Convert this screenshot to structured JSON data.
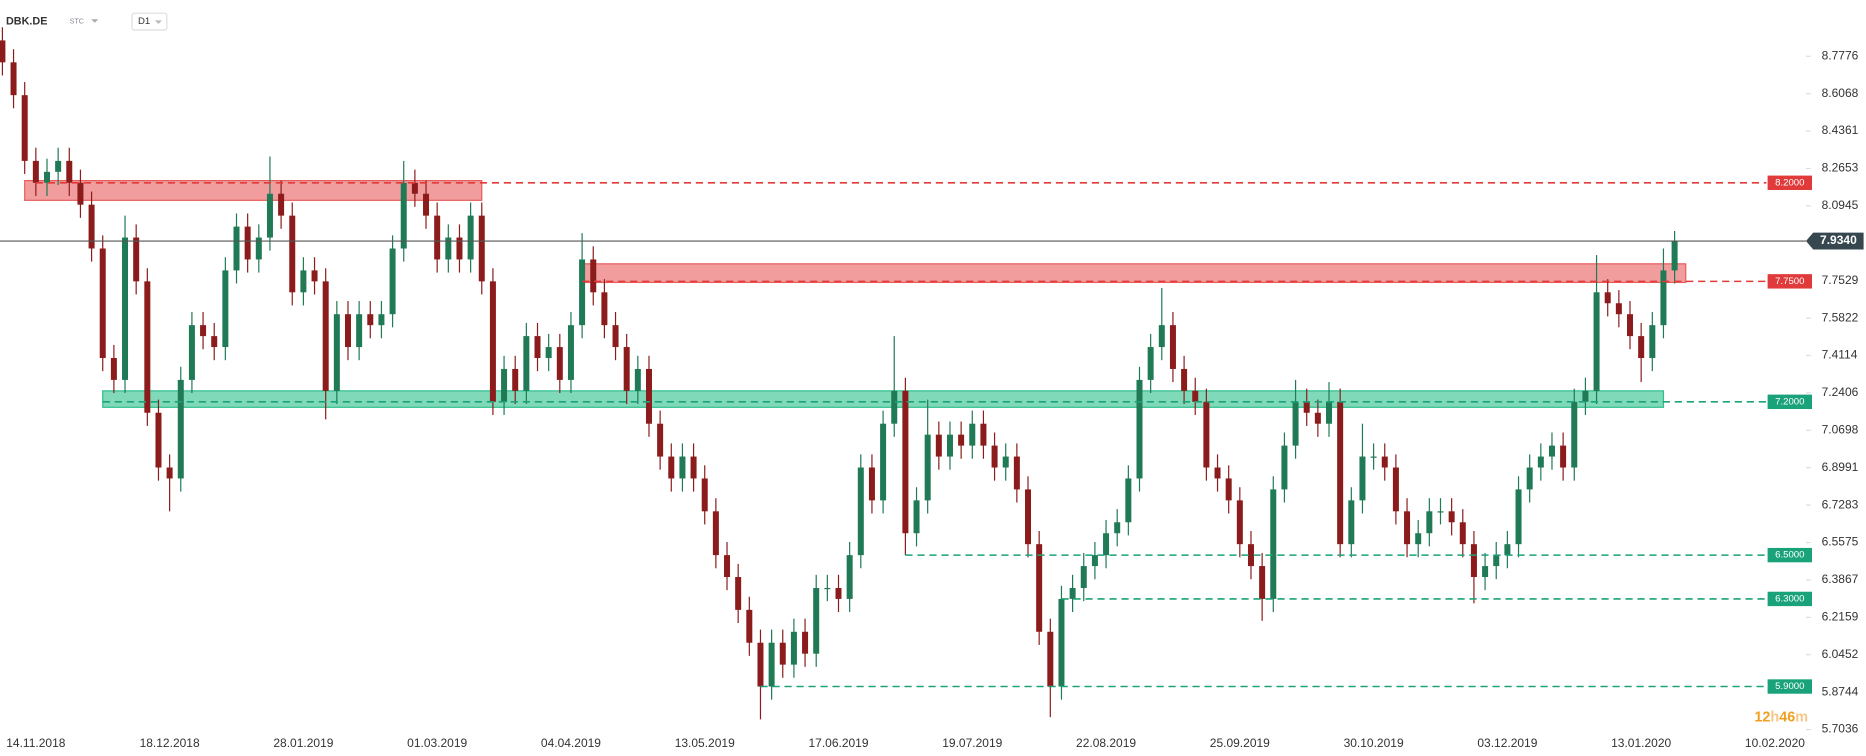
{
  "header": {
    "symbol": "DBK.DE",
    "tag": "STC",
    "interval": "D1"
  },
  "countdown": [
    "12",
    "h",
    "46",
    "m"
  ],
  "chart_data": {
    "type": "candlestick",
    "categories": [
      null,
      null,
      null,
      "14.11.2018",
      null,
      null,
      null,
      null,
      null,
      null,
      null,
      null,
      null,
      null,
      null,
      "18.12.2018",
      null,
      null,
      null,
      null,
      null,
      null,
      null,
      null,
      null,
      null,
      null,
      "28.01.2019",
      null,
      null,
      null,
      null,
      null,
      null,
      null,
      null,
      null,
      null,
      null,
      "01.03.2019",
      null,
      null,
      null,
      null,
      null,
      null,
      null,
      null,
      null,
      null,
      null,
      "04.04.2019",
      null,
      null,
      null,
      null,
      null,
      null,
      null,
      null,
      null,
      null,
      null,
      "13.05.2019",
      null,
      null,
      null,
      null,
      null,
      null,
      null,
      null,
      null,
      null,
      null,
      "17.06.2019",
      null,
      null,
      null,
      null,
      null,
      null,
      null,
      null,
      null,
      null,
      null,
      "19.07.2019",
      null,
      null,
      null,
      null,
      null,
      null,
      null,
      null,
      null,
      null,
      null,
      "22.08.2019",
      null,
      null,
      null,
      null,
      null,
      null,
      null,
      null,
      null,
      null,
      null,
      "25.09.2019",
      null,
      null,
      null,
      null,
      null,
      null,
      null,
      null,
      null,
      null,
      null,
      "30.10.2019",
      null,
      null,
      null,
      null,
      null,
      null,
      null,
      null,
      null,
      null,
      null,
      "03.12.2019",
      null,
      null,
      null,
      null,
      null,
      null,
      null,
      null,
      null,
      null,
      null,
      "13.01.2020",
      null,
      null,
      null,
      null,
      null,
      null,
      null,
      null,
      null,
      null,
      null,
      "10.02.2020"
    ],
    "open": [
      8.85,
      8.75,
      8.6,
      8.3,
      8.2,
      8.25,
      8.3,
      8.2,
      8.1,
      7.9,
      7.4,
      7.3,
      7.95,
      7.75,
      7.15,
      6.9,
      6.85,
      7.3,
      7.55,
      7.5,
      7.45,
      7.8,
      8.0,
      7.85,
      7.95,
      8.15,
      8.05,
      7.7,
      7.8,
      7.75,
      7.25,
      7.6,
      7.45,
      7.6,
      7.55,
      7.6,
      7.9,
      8.2,
      8.15,
      8.05,
      7.85,
      7.95,
      7.85,
      8.05,
      7.75,
      7.2,
      7.35,
      7.25,
      7.5,
      7.4,
      7.45,
      7.3,
      7.55,
      7.85,
      7.7,
      7.55,
      7.45,
      7.25,
      7.35,
      7.1,
      6.95,
      6.85,
      6.95,
      6.85,
      6.7,
      6.5,
      6.4,
      6.25,
      6.1,
      5.9,
      6.1,
      6.0,
      6.15,
      6.05,
      6.35,
      6.35,
      6.3,
      6.5,
      6.9,
      6.75,
      7.1,
      7.25,
      6.6,
      6.75,
      7.05,
      6.95,
      7.05,
      7.0,
      7.1,
      7.0,
      6.9,
      6.95,
      6.8,
      6.55,
      6.15,
      5.9,
      6.3,
      6.35,
      6.45,
      6.5,
      6.6,
      6.65,
      6.85,
      7.3,
      7.45,
      7.55,
      7.35,
      7.25,
      7.2,
      6.9,
      6.85,
      6.75,
      6.55,
      6.45,
      6.3,
      6.8,
      7.0,
      7.2,
      7.15,
      7.1,
      7.2,
      6.55,
      6.75,
      6.95,
      6.95,
      6.9,
      6.7,
      6.55,
      6.6,
      6.7,
      6.7,
      6.65,
      6.55,
      6.4,
      6.45,
      6.5,
      6.55,
      6.8,
      6.9,
      6.95,
      7.0,
      6.9,
      7.2,
      7.25,
      7.7,
      7.65,
      7.6,
      7.5,
      7.4,
      7.55,
      7.8,
      null,
      null,
      null,
      null,
      null,
      null,
      null,
      null,
      null
    ],
    "high": [
      8.91,
      8.81,
      8.66,
      8.36,
      8.31,
      8.36,
      8.36,
      8.26,
      8.16,
      7.96,
      7.46,
      8.05,
      8.01,
      7.81,
      7.21,
      6.96,
      7.36,
      7.61,
      7.61,
      7.56,
      7.86,
      8.06,
      8.06,
      8.01,
      8.32,
      8.21,
      8.11,
      7.86,
      7.86,
      7.81,
      7.66,
      7.66,
      7.66,
      7.66,
      7.66,
      7.96,
      8.3,
      8.26,
      8.21,
      8.11,
      8.01,
      8.01,
      8.11,
      8.11,
      7.81,
      7.41,
      7.41,
      7.56,
      7.56,
      7.51,
      7.51,
      7.61,
      7.97,
      7.91,
      7.76,
      7.61,
      7.51,
      7.41,
      7.41,
      7.16,
      7.01,
      7.01,
      7.01,
      6.91,
      6.76,
      6.56,
      6.46,
      6.31,
      6.16,
      6.16,
      6.16,
      6.21,
      6.21,
      6.41,
      6.41,
      6.41,
      6.56,
      6.96,
      6.96,
      7.16,
      7.5,
      7.31,
      6.81,
      7.21,
      7.11,
      7.11,
      7.11,
      7.16,
      7.16,
      7.06,
      7.01,
      7.01,
      6.86,
      6.61,
      6.21,
      6.36,
      6.41,
      6.51,
      6.56,
      6.66,
      6.71,
      6.91,
      7.36,
      7.51,
      7.72,
      7.61,
      7.41,
      7.31,
      7.26,
      6.96,
      6.91,
      6.81,
      6.61,
      6.51,
      6.86,
      7.06,
      7.3,
      7.26,
      7.21,
      7.29,
      7.26,
      6.81,
      7.1,
      7.01,
      7.01,
      6.96,
      6.76,
      6.66,
      6.76,
      6.76,
      6.76,
      6.71,
      6.61,
      6.51,
      6.56,
      6.61,
      6.86,
      6.96,
      7.01,
      7.06,
      7.06,
      7.26,
      7.31,
      7.87,
      7.76,
      7.71,
      7.66,
      7.56,
      7.61,
      7.9,
      7.98,
      null,
      null,
      null,
      null,
      null,
      null,
      null,
      null,
      null
    ],
    "low": [
      8.69,
      8.54,
      8.24,
      8.14,
      8.14,
      8.19,
      8.14,
      8.04,
      7.84,
      7.34,
      7.24,
      7.24,
      7.69,
      7.09,
      6.84,
      6.7,
      6.79,
      7.24,
      7.44,
      7.39,
      7.39,
      7.74,
      7.79,
      7.79,
      7.89,
      7.99,
      7.64,
      7.64,
      7.69,
      7.12,
      7.19,
      7.39,
      7.39,
      7.49,
      7.49,
      7.54,
      7.84,
      8.09,
      7.99,
      7.79,
      7.79,
      7.79,
      7.79,
      7.69,
      7.14,
      7.14,
      7.19,
      7.19,
      7.34,
      7.34,
      7.24,
      7.24,
      7.49,
      7.64,
      7.49,
      7.39,
      7.19,
      7.19,
      7.04,
      6.89,
      6.79,
      6.79,
      6.79,
      6.64,
      6.44,
      6.34,
      6.19,
      6.04,
      5.75,
      5.84,
      5.94,
      5.94,
      5.99,
      5.99,
      6.29,
      6.24,
      6.24,
      6.44,
      6.69,
      6.69,
      7.04,
      6.5,
      6.54,
      6.69,
      6.89,
      6.89,
      6.94,
      6.94,
      6.94,
      6.84,
      6.84,
      6.74,
      6.49,
      6.09,
      5.76,
      5.84,
      6.24,
      6.29,
      6.39,
      6.44,
      6.54,
      6.59,
      6.79,
      7.24,
      7.39,
      7.29,
      7.19,
      7.14,
      6.84,
      6.79,
      6.69,
      6.49,
      6.39,
      6.2,
      6.24,
      6.74,
      6.94,
      7.09,
      7.04,
      7.04,
      6.49,
      6.49,
      6.69,
      6.89,
      6.84,
      6.64,
      6.49,
      6.49,
      6.54,
      6.64,
      6.59,
      6.49,
      6.28,
      6.34,
      6.39,
      6.44,
      6.49,
      6.74,
      6.84,
      6.89,
      6.84,
      6.84,
      7.14,
      7.19,
      7.59,
      7.54,
      7.44,
      7.29,
      7.34,
      7.49,
      7.74,
      null,
      null,
      null,
      null,
      null,
      null,
      null,
      null,
      null
    ],
    "close": [
      8.75,
      8.6,
      8.3,
      8.2,
      8.25,
      8.3,
      8.2,
      8.1,
      7.9,
      7.4,
      7.3,
      7.95,
      7.75,
      7.15,
      6.9,
      6.85,
      7.3,
      7.55,
      7.5,
      7.45,
      7.8,
      8.0,
      7.85,
      7.95,
      8.15,
      8.05,
      7.7,
      7.8,
      7.75,
      7.25,
      7.6,
      7.45,
      7.6,
      7.55,
      7.6,
      7.9,
      8.2,
      8.15,
      8.05,
      7.85,
      7.95,
      7.85,
      8.05,
      7.75,
      7.2,
      7.35,
      7.25,
      7.5,
      7.4,
      7.45,
      7.3,
      7.55,
      7.85,
      7.7,
      7.55,
      7.45,
      7.25,
      7.35,
      7.1,
      6.95,
      6.85,
      6.95,
      6.85,
      6.7,
      6.5,
      6.4,
      6.25,
      6.1,
      5.9,
      6.1,
      6.0,
      6.15,
      6.05,
      6.35,
      6.35,
      6.3,
      6.5,
      6.9,
      6.75,
      7.1,
      7.25,
      6.6,
      6.75,
      7.05,
      6.95,
      7.05,
      7.0,
      7.1,
      7.0,
      6.9,
      6.95,
      6.8,
      6.55,
      6.15,
      5.9,
      6.3,
      6.35,
      6.45,
      6.5,
      6.6,
      6.65,
      6.85,
      7.3,
      7.45,
      7.55,
      7.35,
      7.25,
      7.2,
      6.9,
      6.85,
      6.75,
      6.55,
      6.45,
      6.3,
      6.8,
      7.0,
      7.2,
      7.15,
      7.1,
      7.2,
      6.55,
      6.75,
      6.95,
      6.95,
      6.9,
      6.7,
      6.55,
      6.6,
      6.7,
      6.7,
      6.65,
      6.55,
      6.4,
      6.45,
      6.5,
      6.55,
      6.8,
      6.9,
      6.95,
      7.0,
      6.9,
      7.2,
      7.25,
      7.7,
      7.65,
      7.6,
      7.5,
      7.4,
      7.55,
      7.8,
      7.934,
      null,
      null,
      null,
      null,
      null,
      null,
      null,
      null,
      null
    ],
    "up_color": "#1f7a55",
    "down_color": "#8c1c1c",
    "ylim": [
      5.665,
      8.925
    ],
    "yticks": [
      5.7036,
      5.8744,
      6.0452,
      6.2159,
      6.3867,
      6.5575,
      6.7283,
      6.8991,
      7.0698,
      7.2406,
      7.4114,
      7.5822,
      7.7529,
      8.0945,
      8.2653,
      8.4361,
      8.6068,
      8.7776
    ],
    "zones": [
      {
        "low": 8.12,
        "high": 8.21,
        "start": 2,
        "end": 43,
        "color": "#e85c5c"
      },
      {
        "low": 7.745,
        "high": 7.83,
        "start": 52,
        "end": 151,
        "color": "#e85c5c"
      },
      {
        "low": 7.175,
        "high": 7.25,
        "start": 9,
        "end": 149,
        "color": "#2cbf8a"
      }
    ],
    "levels": [
      {
        "value": 8.2,
        "label": "8.2000",
        "start": 3,
        "color": "#e03a3a"
      },
      {
        "value": 7.75,
        "label": "7.7500",
        "start": 52,
        "color": "#e03a3a"
      },
      {
        "value": 7.2,
        "label": "7.2000",
        "start": 9,
        "color": "#1aa37a"
      },
      {
        "value": 6.5,
        "label": "6.5000",
        "start": 81,
        "color": "#1aa37a"
      },
      {
        "value": 6.3,
        "label": "6.3000",
        "start": 95,
        "color": "#1aa37a"
      },
      {
        "value": 5.9,
        "label": "5.9000",
        "start": 68,
        "color": "#1aa37a"
      }
    ],
    "current_price": {
      "value": 7.934,
      "label": "7.9340",
      "color": "#37474f"
    }
  }
}
